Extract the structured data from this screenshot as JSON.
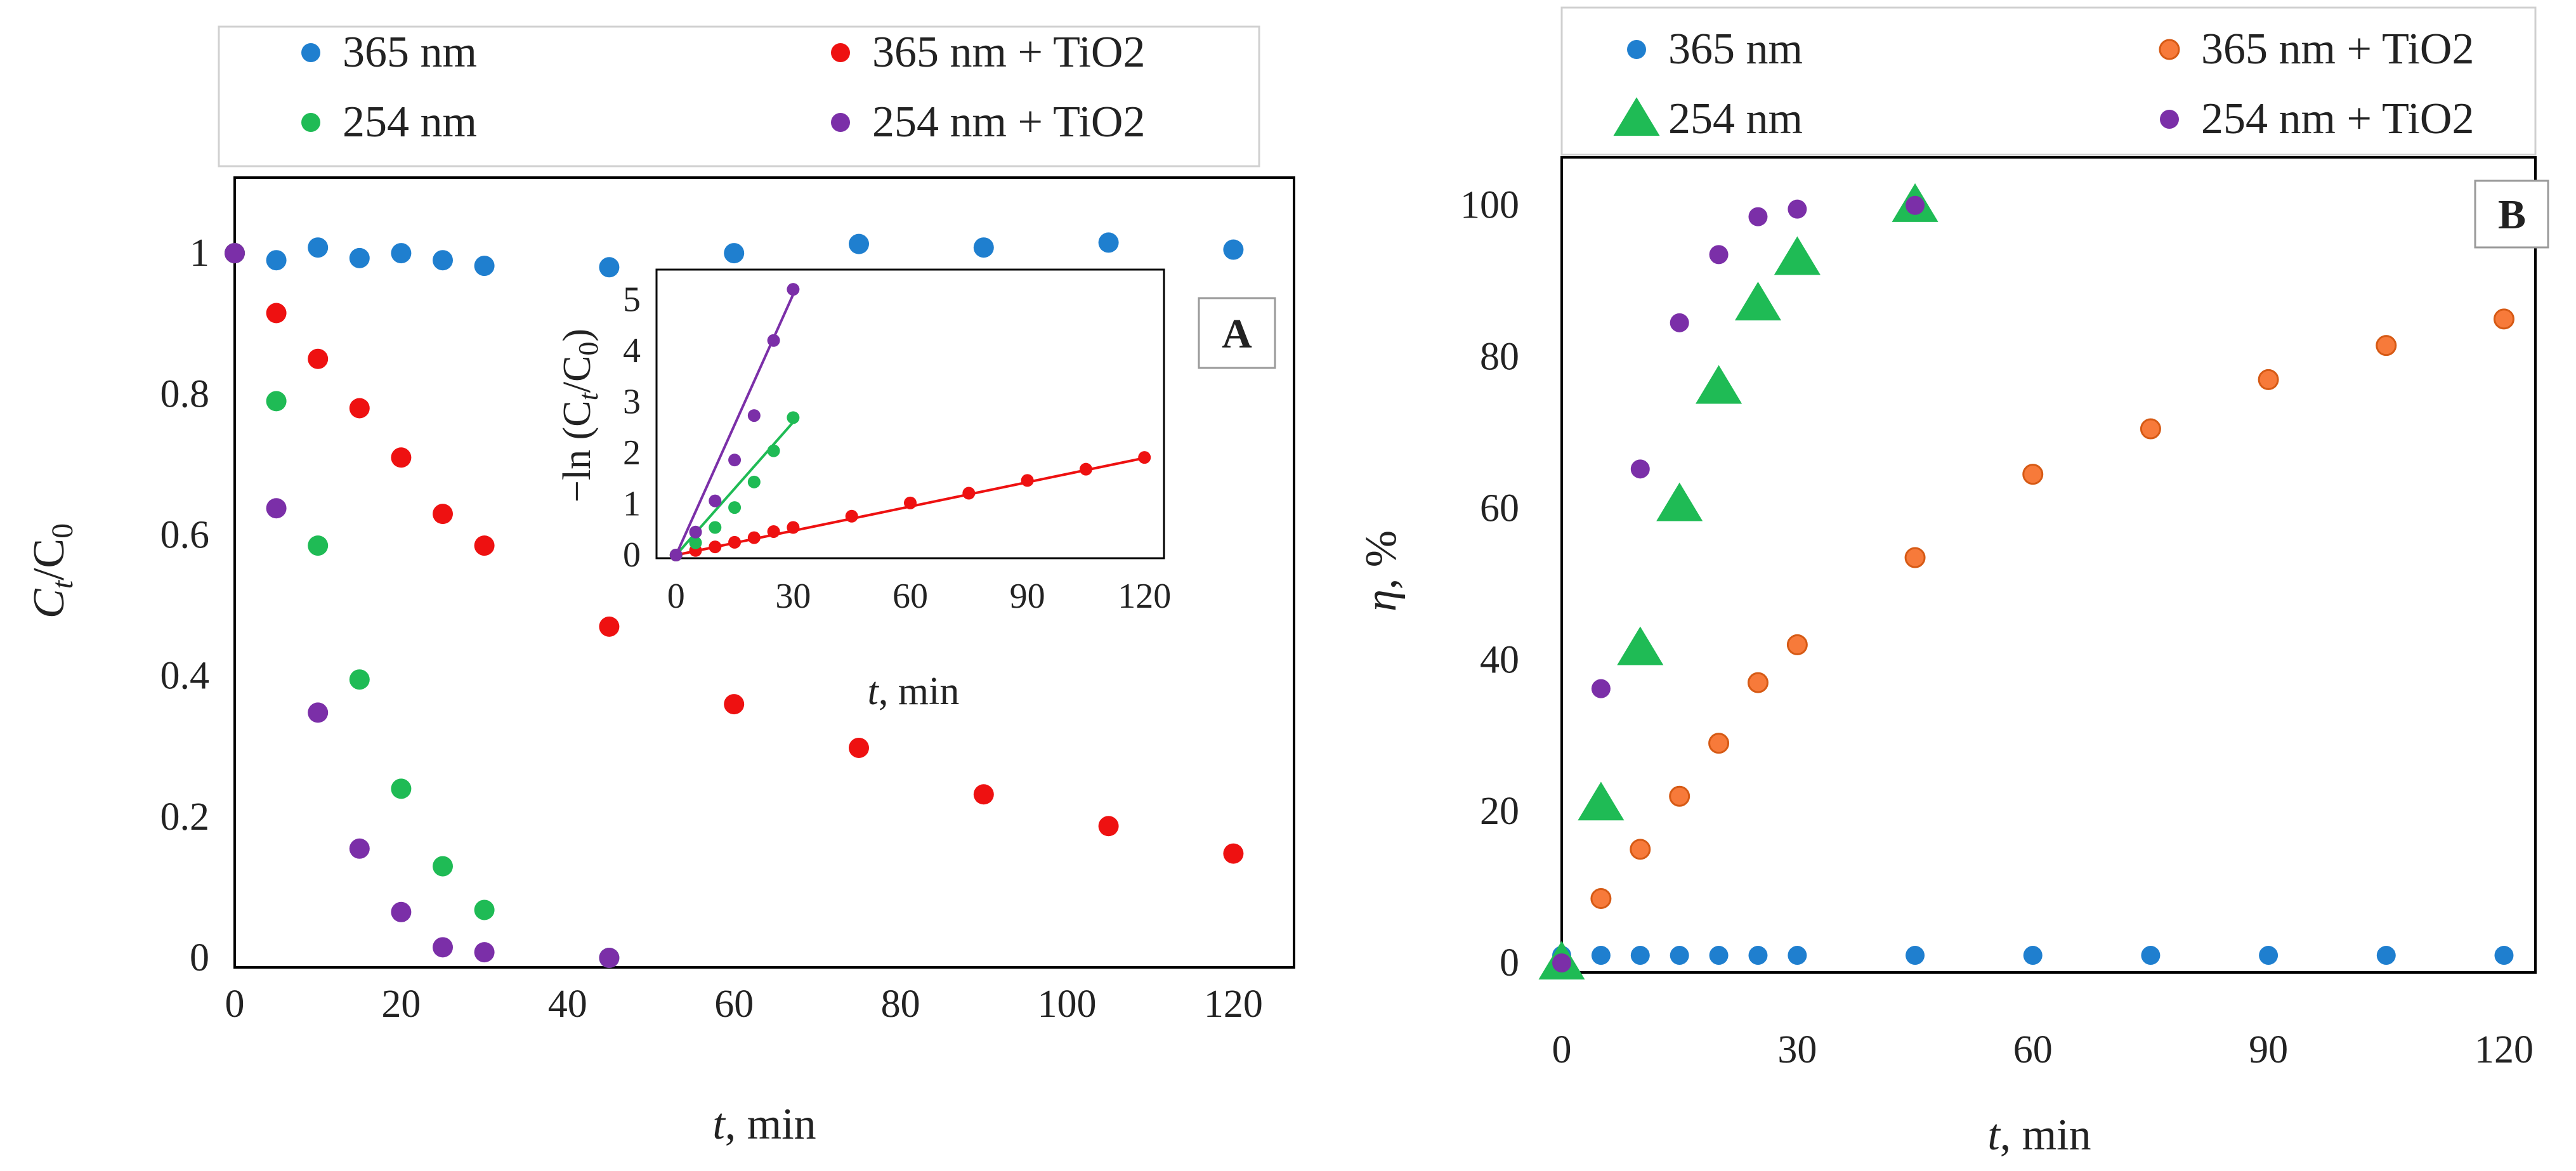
{
  "chart_data": [
    {
      "id": "A",
      "type": "scatter",
      "panel_label": "A",
      "xlabel_italic": "t",
      "xlabel_rest": ", min",
      "ylabel_main": "C",
      "ylabel_sub": "t",
      "ylabel_slash": "/C",
      "ylabel_sub0": "0",
      "xlim": [
        0,
        125
      ],
      "ylim": [
        0,
        1.1
      ],
      "xticks": [
        "0",
        "20",
        "40",
        "60",
        "80",
        "100",
        "120"
      ],
      "xtick_values": [
        0,
        20,
        40,
        60,
        80,
        100,
        120
      ],
      "yticks": [
        "0",
        "0.2",
        "0.4",
        "0.6",
        "0.8",
        "1"
      ],
      "ytick_values": [
        0,
        0.2,
        0.4,
        0.6,
        0.8,
        1.0
      ],
      "legend": [
        "365 nm",
        "365 nm + TiO2",
        "254 nm",
        "254 nm + TiO2"
      ],
      "series": [
        {
          "name": "365 nm",
          "color": "#1f7fcf",
          "marker": "circle",
          "x": [
            0,
            5,
            10,
            15,
            20,
            25,
            30,
            45,
            60,
            75,
            90,
            105,
            120
          ],
          "y": [
            1.0,
            0.99,
            1.008,
            0.993,
            1.0,
            0.99,
            0.982,
            0.98,
            1.0,
            1.013,
            1.008,
            1.015,
            1.005
          ]
        },
        {
          "name": "365 nm + TiO2",
          "color": "#ee1111",
          "marker": "circle",
          "x": [
            0,
            5,
            10,
            15,
            20,
            25,
            30,
            45,
            60,
            75,
            90,
            105,
            120
          ],
          "y": [
            1.0,
            0.915,
            0.85,
            0.78,
            0.71,
            0.63,
            0.585,
            0.47,
            0.36,
            0.298,
            0.232,
            0.187,
            0.148
          ]
        },
        {
          "name": "254 nm",
          "color": "#1fbb55",
          "marker": "circle",
          "x": [
            0,
            5,
            10,
            15,
            20,
            25,
            30,
            45
          ],
          "y": [
            1.0,
            0.79,
            0.585,
            0.395,
            0.24,
            0.13,
            0.068,
            0.0
          ]
        },
        {
          "name": "254 nm + TiO2",
          "color": "#7b2fa8",
          "marker": "circle",
          "x": [
            0,
            5,
            10,
            15,
            20,
            25,
            30,
            45
          ],
          "y": [
            1.0,
            0.638,
            0.348,
            0.155,
            0.065,
            0.015,
            0.008,
            0.0
          ]
        }
      ],
      "inset": {
        "type": "scatter",
        "xlabel_italic": "t",
        "xlabel_rest": ", min",
        "ylabel_text": "−ln (C",
        "ylabel_sub": "t",
        "ylabel_mid": "/C",
        "ylabel_sub0": "0",
        "ylabel_end": ")",
        "xlim": [
          -5,
          125
        ],
        "ylim": [
          0,
          5.5
        ],
        "xticks": [
          "0",
          "30",
          "60",
          "90",
          "120"
        ],
        "xtick_values": [
          0,
          30,
          60,
          90,
          120
        ],
        "yticks": [
          "0",
          "1",
          "2",
          "3",
          "4",
          "5"
        ],
        "ytick_values": [
          0,
          1,
          2,
          3,
          4,
          5
        ],
        "series": [
          {
            "name": "365 nm + TiO2",
            "color": "#ee1111",
            "x": [
              0,
              5,
              10,
              15,
              20,
              25,
              30,
              45,
              60,
              75,
              90,
              105,
              120
            ],
            "y": [
              0.0,
              0.09,
              0.16,
              0.25,
              0.34,
              0.46,
              0.54,
              0.76,
              1.02,
              1.21,
              1.46,
              1.68,
              1.91
            ],
            "fit": {
              "x": [
                0,
                120
              ],
              "y": [
                0.0,
                1.9
              ]
            }
          },
          {
            "name": "254 nm",
            "color": "#1fbb55",
            "x": [
              0,
              5,
              10,
              15,
              20,
              25,
              30
            ],
            "y": [
              0.0,
              0.24,
              0.54,
              0.93,
              1.43,
              2.04,
              2.69
            ],
            "fit": {
              "x": [
                0,
                30
              ],
              "y": [
                0.0,
                2.6
              ]
            }
          },
          {
            "name": "254 nm + TiO2",
            "color": "#7b2fa8",
            "x": [
              0,
              5,
              10,
              15,
              20,
              25,
              30
            ],
            "y": [
              0.0,
              0.45,
              1.06,
              1.86,
              2.73,
              4.2,
              5.2
            ],
            "fit": {
              "x": [
                0,
                30
              ],
              "y": [
                0.0,
                5.1
              ]
            }
          }
        ]
      }
    },
    {
      "id": "B",
      "type": "scatter",
      "panel_label": "B",
      "xlabel_italic": "t",
      "xlabel_rest": ", min",
      "ylabel_italic": "η",
      "ylabel_rest": ", %",
      "xlim": [
        0,
        124
      ],
      "ylim": [
        0,
        105
      ],
      "xticks": [
        "0",
        "30",
        "60",
        "90",
        "120"
      ],
      "xtick_values": [
        0,
        30,
        60,
        90,
        120
      ],
      "yticks": [
        "0",
        "20",
        "40",
        "60",
        "80",
        "100"
      ],
      "ytick_values": [
        0,
        20,
        40,
        60,
        80,
        100
      ],
      "legend": [
        "365 nm",
        "365 nm + TiO2",
        "254 nm",
        "254 nm + TiO2"
      ],
      "series": [
        {
          "name": "365 nm",
          "color": "#1f7fcf",
          "marker": "circle",
          "x": [
            0,
            5,
            10,
            15,
            20,
            25,
            30,
            45,
            60,
            75,
            90,
            105,
            120
          ],
          "y": [
            1,
            1,
            1,
            1,
            1,
            1,
            1,
            1,
            1,
            1,
            1,
            1,
            1
          ]
        },
        {
          "name": "365 nm + TiO2",
          "color": "#f77a3a",
          "marker": "circle-outlined",
          "x": [
            5,
            10,
            15,
            20,
            25,
            30,
            45,
            60,
            75,
            90,
            105,
            120
          ],
          "y": [
            8.5,
            15,
            22,
            29,
            37,
            42,
            53.5,
            64.5,
            70.5,
            77,
            81.5,
            85
          ]
        },
        {
          "name": "254 nm",
          "color": "#1fbb55",
          "marker": "triangle",
          "x": [
            0,
            5,
            10,
            15,
            20,
            25,
            30,
            45
          ],
          "y": [
            0,
            21,
            41.5,
            60.5,
            76,
            87,
            93,
            100
          ]
        },
        {
          "name": "254 nm + TiO2",
          "color": "#7b2fa8",
          "marker": "circle",
          "x": [
            0,
            5,
            10,
            15,
            20,
            25,
            30,
            45
          ],
          "y": [
            0,
            36.2,
            65.2,
            84.5,
            93.5,
            98.5,
            99.5,
            100
          ]
        }
      ]
    }
  ]
}
